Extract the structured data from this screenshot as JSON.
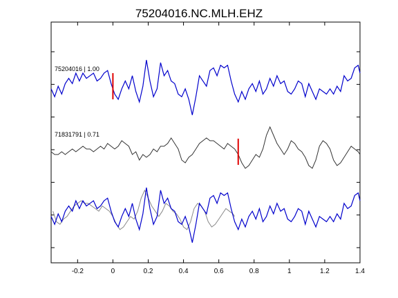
{
  "chart_data": {
    "type": "line",
    "title": "75204016.NC.MLH.EHZ",
    "xlabel": "",
    "ylabel": "",
    "xlim": [
      -0.35,
      1.4
    ],
    "xticks": [
      -0.2,
      0,
      0.2,
      0.4,
      0.6,
      0.8,
      1,
      1.2,
      1.4
    ],
    "xtick_labels": [
      "-0.2",
      "0",
      "0.2",
      "0.4",
      "0.6",
      "0.8",
      "1",
      "1.2",
      "1.4"
    ],
    "y_ticks_unlabeled": 7,
    "grid": false,
    "colors": {
      "master": "#0000cc",
      "correlated": "#333333",
      "overlay_gray": "#888888",
      "pick": "#e00000"
    },
    "traces": [
      {
        "label": "75204016 | 1.00",
        "pick_time": 0.0,
        "color": "#0000cc",
        "x": [
          -0.35,
          -0.33,
          -0.31,
          -0.29,
          -0.27,
          -0.25,
          -0.23,
          -0.21,
          -0.19,
          -0.17,
          -0.15,
          -0.13,
          -0.11,
          -0.09,
          -0.07,
          -0.05,
          -0.03,
          -0.01,
          0.01,
          0.03,
          0.05,
          0.07,
          0.09,
          0.11,
          0.13,
          0.15,
          0.17,
          0.19,
          0.21,
          0.23,
          0.25,
          0.27,
          0.29,
          0.31,
          0.33,
          0.35,
          0.37,
          0.39,
          0.41,
          0.43,
          0.45,
          0.47,
          0.49,
          0.51,
          0.53,
          0.55,
          0.57,
          0.59,
          0.61,
          0.63,
          0.65,
          0.67,
          0.69,
          0.71,
          0.73,
          0.75,
          0.77,
          0.79,
          0.81,
          0.83,
          0.85,
          0.87,
          0.89,
          0.91,
          0.93,
          0.95,
          0.97,
          0.99,
          1.01,
          1.03,
          1.05,
          1.07,
          1.09,
          1.11,
          1.13,
          1.15,
          1.17,
          1.19,
          1.21,
          1.23,
          1.25,
          1.27,
          1.29,
          1.31,
          1.33,
          1.35,
          1.37,
          1.39,
          1.4
        ],
        "y": [
          -0.1,
          -0.4,
          0.0,
          -0.3,
          0.1,
          0.3,
          0.1,
          0.5,
          0.2,
          0.5,
          0.3,
          0.4,
          0.5,
          0.2,
          0.3,
          0.5,
          0.6,
          0.1,
          -0.3,
          -0.5,
          -0.1,
          0.2,
          -0.1,
          0.4,
          -0.2,
          -0.6,
          0.0,
          1.0,
          0.2,
          -0.4,
          -0.1,
          0.9,
          0.4,
          0.6,
          0.2,
          0.1,
          -0.3,
          -0.4,
          -0.1,
          -0.5,
          -1.1,
          -0.4,
          0.4,
          0.2,
          0.0,
          0.6,
          0.7,
          0.4,
          0.8,
          0.7,
          0.8,
          0.2,
          -0.3,
          -0.6,
          -0.2,
          -0.5,
          -0.1,
          0.1,
          -0.2,
          0.2,
          -0.3,
          -0.1,
          0.3,
          0.0,
          0.4,
          0.1,
          0.2,
          -0.2,
          -0.3,
          -0.1,
          0.2,
          0.1,
          -0.4,
          0.1,
          -0.2,
          -0.5,
          -0.1,
          -0.2,
          -0.3,
          -0.1,
          -0.3,
          0.0,
          -0.2,
          0.4,
          0.2,
          0.3,
          0.7,
          0.8,
          0.5
        ]
      },
      {
        "label": "71831791 | 0.71",
        "pick_time": 0.71,
        "color": "#333333",
        "x": [
          -0.35,
          -0.33,
          -0.31,
          -0.29,
          -0.27,
          -0.25,
          -0.23,
          -0.21,
          -0.19,
          -0.17,
          -0.15,
          -0.13,
          -0.11,
          -0.09,
          -0.07,
          -0.05,
          -0.03,
          -0.01,
          0.01,
          0.03,
          0.05,
          0.07,
          0.09,
          0.11,
          0.13,
          0.15,
          0.17,
          0.19,
          0.21,
          0.23,
          0.25,
          0.27,
          0.29,
          0.31,
          0.33,
          0.35,
          0.37,
          0.39,
          0.41,
          0.43,
          0.45,
          0.47,
          0.49,
          0.51,
          0.53,
          0.55,
          0.57,
          0.59,
          0.61,
          0.63,
          0.65,
          0.67,
          0.69,
          0.71,
          0.73,
          0.75,
          0.77,
          0.79,
          0.81,
          0.83,
          0.85,
          0.87,
          0.89,
          0.91,
          0.93,
          0.95,
          0.97,
          0.99,
          1.01,
          1.03,
          1.05,
          1.07,
          1.09,
          1.11,
          1.13,
          1.15,
          1.17,
          1.19,
          1.21,
          1.23,
          1.25,
          1.27,
          1.29,
          1.31,
          1.33,
          1.35,
          1.37,
          1.39,
          1.4
        ],
        "y": [
          0.0,
          -0.1,
          -0.1,
          0.0,
          -0.1,
          0.0,
          0.1,
          0.0,
          0.1,
          0.2,
          0.1,
          0.1,
          0.0,
          0.1,
          0.2,
          0.1,
          0.3,
          0.2,
          0.1,
          0.2,
          0.4,
          0.3,
          0.2,
          -0.1,
          0.0,
          -0.3,
          -0.1,
          -0.2,
          -0.1,
          0.1,
          0.0,
          0.2,
          0.2,
          0.3,
          0.5,
          0.3,
          0.1,
          -0.3,
          -0.4,
          -0.2,
          -0.1,
          0.1,
          0.3,
          0.4,
          0.5,
          0.4,
          0.4,
          0.3,
          0.2,
          0.1,
          0.3,
          0.2,
          0.1,
          -0.1,
          -0.4,
          -0.6,
          -0.5,
          -0.3,
          -0.1,
          -0.2,
          0.1,
          0.6,
          0.9,
          0.6,
          0.3,
          0.1,
          -0.1,
          0.1,
          0.4,
          0.3,
          0.1,
          0.0,
          -0.2,
          -0.5,
          -0.6,
          -0.3,
          0.2,
          0.4,
          0.3,
          0.1,
          -0.3,
          -0.5,
          -0.4,
          -0.2,
          0.0,
          0.2,
          0.1,
          0.0,
          -0.1
        ]
      }
    ]
  }
}
